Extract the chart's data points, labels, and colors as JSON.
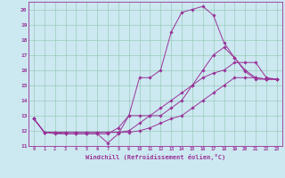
{
  "xlabel": "Windchill (Refroidissement éolien,°C)",
  "bg_color": "#cce8f0",
  "line_color": "#993399",
  "grid_color": "#99ccbb",
  "xlim": [
    -0.5,
    23.5
  ],
  "ylim": [
    11,
    20.5
  ],
  "yticks": [
    11,
    12,
    13,
    14,
    15,
    16,
    17,
    18,
    19,
    20
  ],
  "xticks": [
    0,
    1,
    2,
    3,
    4,
    5,
    6,
    7,
    8,
    9,
    10,
    11,
    12,
    13,
    14,
    15,
    16,
    17,
    18,
    19,
    20,
    21,
    22,
    23
  ],
  "series": [
    [
      12.8,
      11.9,
      11.8,
      11.8,
      11.8,
      11.8,
      11.8,
      11.2,
      11.8,
      13.0,
      15.5,
      15.5,
      16.0,
      18.5,
      19.8,
      20.0,
      20.2,
      19.6,
      17.8,
      16.8,
      15.9,
      15.4,
      15.4,
      15.4
    ],
    [
      12.8,
      11.9,
      11.9,
      11.8,
      11.8,
      11.8,
      11.8,
      11.8,
      12.2,
      13.0,
      13.0,
      13.0,
      13.0,
      13.5,
      14.0,
      15.0,
      16.0,
      17.0,
      17.5,
      16.8,
      16.0,
      15.5,
      15.4,
      15.4
    ],
    [
      12.8,
      11.9,
      11.9,
      11.9,
      11.9,
      11.9,
      11.9,
      11.9,
      11.9,
      12.0,
      12.5,
      13.0,
      13.5,
      14.0,
      14.5,
      15.0,
      15.5,
      15.8,
      16.0,
      16.5,
      16.5,
      16.5,
      15.5,
      15.4
    ],
    [
      12.8,
      11.9,
      11.9,
      11.9,
      11.9,
      11.9,
      11.9,
      11.9,
      11.9,
      11.9,
      12.0,
      12.2,
      12.5,
      12.8,
      13.0,
      13.5,
      14.0,
      14.5,
      15.0,
      15.5,
      15.5,
      15.5,
      15.4,
      15.4
    ]
  ]
}
